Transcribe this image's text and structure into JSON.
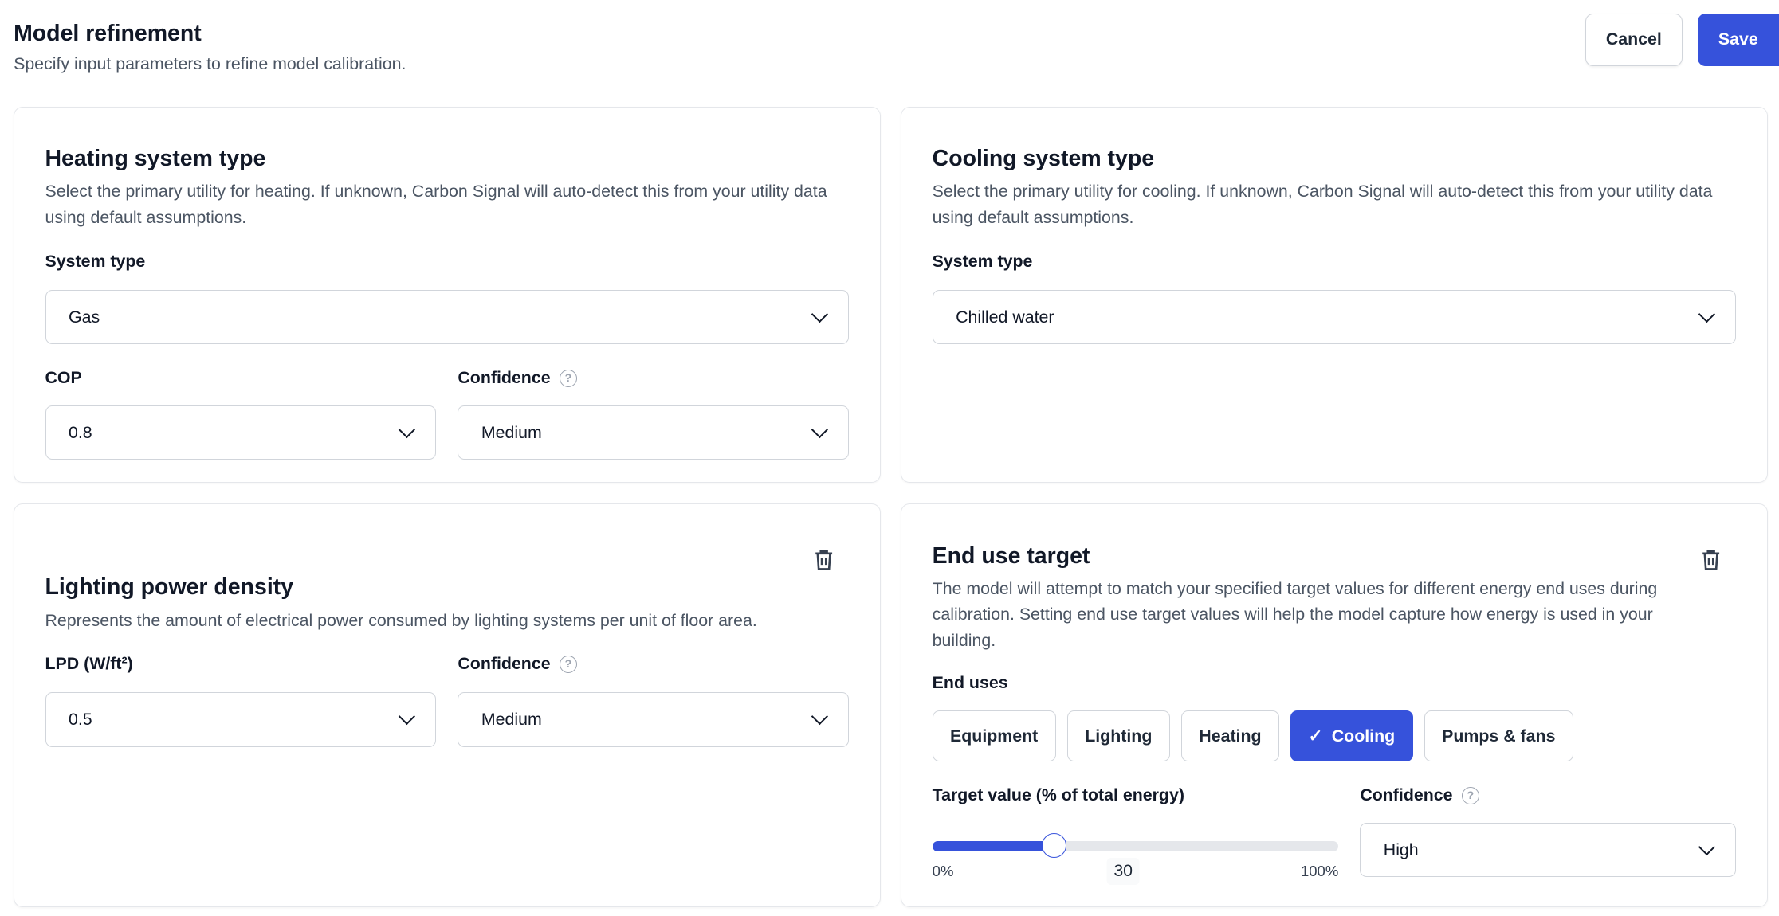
{
  "header": {
    "title": "Model refinement",
    "subtitle": "Specify input parameters to refine model calibration.",
    "cancel_label": "Cancel",
    "save_label": "Save"
  },
  "colors": {
    "accent": "#3652db",
    "border": "#d1d5db",
    "muted_text": "#4b5563"
  },
  "heating": {
    "title": "Heating system type",
    "description": "Select the primary utility for heating. If unknown, Carbon Signal will auto-detect this from your utility data using default assumptions.",
    "system_type_label": "System type",
    "system_type_value": "Gas",
    "cop_label": "COP",
    "cop_value": "0.8",
    "confidence_label": "Confidence",
    "confidence_value": "Medium"
  },
  "cooling": {
    "title": "Cooling system type",
    "description": "Select the primary utility for cooling. If unknown, Carbon Signal will auto-detect this from your utility data using default assumptions.",
    "system_type_label": "System type",
    "system_type_value": "Chilled water"
  },
  "lighting": {
    "title": "Lighting power density",
    "description": "Represents the amount of electrical power consumed by lighting systems per unit of floor area.",
    "lpd_label": "LPD (W/ft²)",
    "lpd_value": "0.5",
    "confidence_label": "Confidence",
    "confidence_value": "Medium"
  },
  "end_use": {
    "title": "End use target",
    "description": "The model will attempt to match your specified target values for different energy end uses during calibration. Setting end use target values will help the model capture how energy is used in your building.",
    "end_uses_label": "End uses",
    "chips": [
      {
        "label": "Equipment",
        "selected": false
      },
      {
        "label": "Lighting",
        "selected": false
      },
      {
        "label": "Heating",
        "selected": false
      },
      {
        "label": "Cooling",
        "selected": true
      },
      {
        "label": "Pumps & fans",
        "selected": false
      }
    ],
    "target_label": "Target value (% of total energy)",
    "slider_min": "0%",
    "slider_max": "100%",
    "slider_value": 30,
    "slider_value_text": "30",
    "confidence_label": "Confidence",
    "confidence_value": "High"
  },
  "icons": {
    "help": "question-circle-icon",
    "delete": "trash-icon",
    "dropdown": "chevron-down-icon",
    "check": "check-icon"
  }
}
